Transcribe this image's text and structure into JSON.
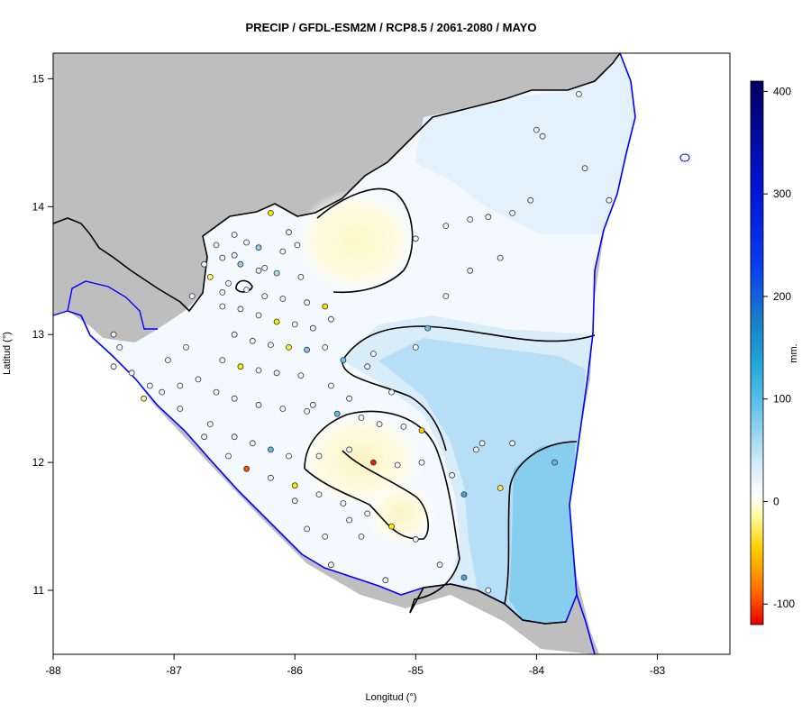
{
  "title": "PRECIP / GFDL-ESM2M / RCP8.5 / 2061-2080 / MAYO",
  "chart_data": {
    "type": "heatmap",
    "title": "PRECIP / GFDL-ESM2M / RCP8.5 / 2061-2080 / MAYO",
    "xlabel": "Longitud (°)",
    "ylabel": "Latitud (°)",
    "xlim": [
      -88,
      -82.4
    ],
    "ylim": [
      10.5,
      15.2
    ],
    "x_ticks": [
      -88,
      -87,
      -86,
      -85,
      -84,
      -83
    ],
    "x_tick_labels": [
      "-88",
      "-87",
      "-86",
      "-85",
      "-84",
      "-83"
    ],
    "y_ticks": [
      11,
      12,
      13,
      14,
      15
    ],
    "y_tick_labels": [
      "11",
      "12",
      "13",
      "14",
      "15"
    ],
    "colorbar": {
      "unit": "mm.",
      "min": -120,
      "max": 410,
      "ticks": [
        400,
        300,
        200,
        100,
        0,
        -100
      ],
      "tick_labels": [
        "400",
        "300",
        "200",
        "100",
        "0",
        "-100"
      ]
    },
    "contour_levels": [
      0,
      50
    ]
  },
  "colors": {
    "land_outside": "#bebebe",
    "coastline": "#0000ff",
    "border": "#000000",
    "contour": "#000000",
    "station_stroke": "#333333"
  }
}
